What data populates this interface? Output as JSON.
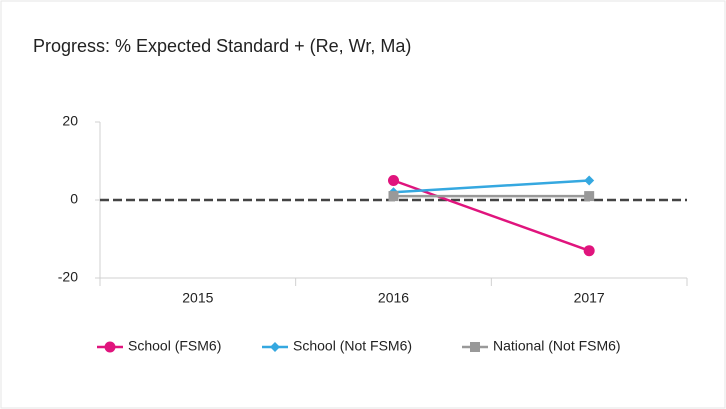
{
  "chart_data": {
    "type": "line",
    "title": "Progress: % Expected Standard + (Re, Wr, Ma)",
    "categories": [
      "2015",
      "2016",
      "2017"
    ],
    "series": [
      {
        "name": "School (FSM6)",
        "color": "#e0147d",
        "marker": "circle",
        "values": [
          null,
          5,
          -13
        ]
      },
      {
        "name": "School (Not FSM6)",
        "color": "#35a8e0",
        "marker": "diamond",
        "values": [
          null,
          2,
          5
        ]
      },
      {
        "name": "National (Not FSM6)",
        "color": "#999999",
        "marker": "square",
        "values": [
          null,
          1,
          1
        ]
      }
    ],
    "ylim": [
      -20,
      20
    ],
    "yticks": [
      -20,
      0,
      20
    ],
    "reference_line": 0,
    "legend": "bottom"
  }
}
